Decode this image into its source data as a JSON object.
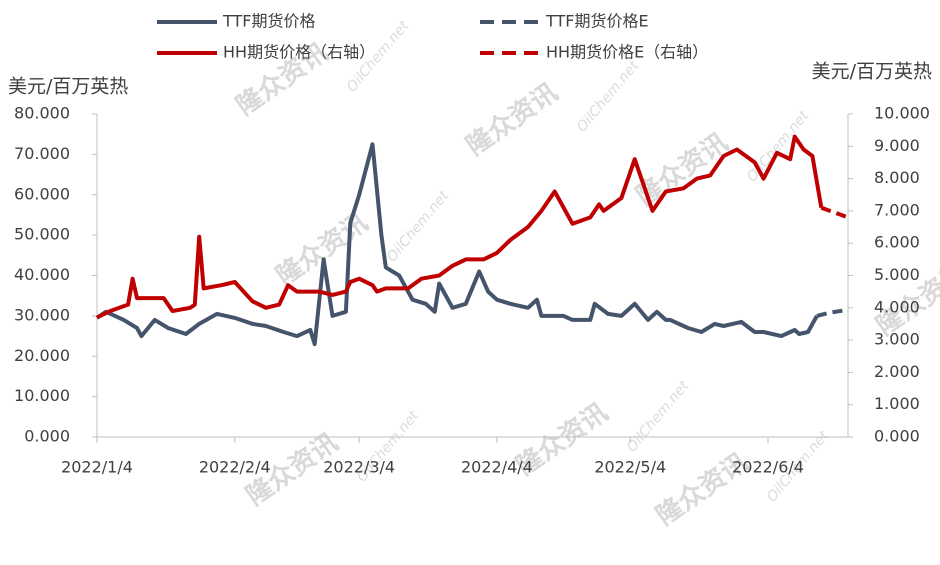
{
  "chart_data": {
    "type": "line",
    "y_label": "美元/百万英热",
    "y2_label": "美元/百万英热",
    "watermark": {
      "text": "隆众资讯",
      "site": "OilChem.net"
    },
    "xlim": [
      "2022/1/4",
      "2022/6/22"
    ],
    "xticks": [
      "2022/1/4",
      "2022/2/4",
      "2022/3/4",
      "2022/4/4",
      "2022/5/4",
      "2022/6/4"
    ],
    "ylim": [
      0,
      80
    ],
    "yticks": [
      {
        "value": 0,
        "label": "0.000"
      },
      {
        "value": 10,
        "label": "10.000"
      },
      {
        "value": 20,
        "label": "20.000"
      },
      {
        "value": 30,
        "label": "30.000"
      },
      {
        "value": 40,
        "label": "40.000"
      },
      {
        "value": 50,
        "label": "50.000"
      },
      {
        "value": 60,
        "label": "60.000"
      },
      {
        "value": 70,
        "label": "70.000"
      },
      {
        "value": 80,
        "label": "80.000"
      }
    ],
    "y2lim": [
      0,
      10
    ],
    "y2ticks": [
      {
        "value": 0,
        "label": "0.000"
      },
      {
        "value": 1,
        "label": "1.000"
      },
      {
        "value": 2,
        "label": "2.000"
      },
      {
        "value": 3,
        "label": "3.000"
      },
      {
        "value": 4,
        "label": "4.000"
      },
      {
        "value": 5,
        "label": "5.000"
      },
      {
        "value": 6,
        "label": "6.000"
      },
      {
        "value": 7,
        "label": "7.000"
      },
      {
        "value": 8,
        "label": "8.000"
      },
      {
        "value": 9,
        "label": "9.000"
      },
      {
        "value": 10,
        "label": "10.000"
      }
    ],
    "series": [
      {
        "name": "TTF期货价格",
        "color": "#44546a",
        "dash": false,
        "x": [
          "2022/1/4",
          "2022/1/6",
          "2022/1/10",
          "2022/1/13",
          "2022/1/14",
          "2022/1/17",
          "2022/1/20",
          "2022/1/24",
          "2022/1/27",
          "2022/1/31",
          "2022/2/4",
          "2022/2/8",
          "2022/2/11",
          "2022/2/15",
          "2022/2/18",
          "2022/2/21",
          "2022/2/22",
          "2022/2/24",
          "2022/2/26",
          "2022/3/1",
          "2022/3/2",
          "2022/3/4",
          "2022/3/7",
          "2022/3/9",
          "2022/3/10",
          "2022/3/13",
          "2022/3/16",
          "2022/3/19",
          "2022/3/21",
          "2022/3/22",
          "2022/3/25",
          "2022/3/28",
          "2022/3/31",
          "2022/4/2",
          "2022/4/4",
          "2022/4/7",
          "2022/4/11",
          "2022/4/13",
          "2022/4/14",
          "2022/4/19",
          "2022/4/21",
          "2022/4/25",
          "2022/4/26",
          "2022/4/29",
          "2022/5/2",
          "2022/5/5",
          "2022/5/8",
          "2022/5/10",
          "2022/5/12",
          "2022/5/13",
          "2022/5/17",
          "2022/5/20",
          "2022/5/23",
          "2022/5/25",
          "2022/5/29",
          "2022/6/1",
          "2022/6/3",
          "2022/6/7",
          "2022/6/10",
          "2022/6/11",
          "2022/6/13",
          "2022/6/15"
        ],
        "values": [
          29.5,
          31,
          29,
          27,
          25,
          29,
          27,
          25.5,
          28,
          30.5,
          29.5,
          28,
          27.5,
          26,
          25,
          26.5,
          23,
          44,
          30,
          31,
          53,
          60,
          72.5,
          50,
          42,
          40,
          34,
          33,
          31,
          38,
          32,
          33,
          41,
          36,
          34,
          33,
          32,
          34,
          30,
          30,
          29,
          29,
          33,
          30.5,
          30,
          33,
          29,
          31,
          29,
          29,
          27,
          26,
          28,
          27.5,
          28.5,
          26,
          26,
          25,
          26.5,
          25.5,
          26,
          30
        ]
      },
      {
        "name": "TTF期货价格E",
        "color": "#44546a",
        "dash": true,
        "x": [
          "2022/6/15",
          "2022/6/18",
          "2022/6/22"
        ],
        "values": [
          30,
          30.8,
          31.5
        ]
      },
      {
        "name": "HH期货价格（右轴）",
        "color": "#c00000",
        "dash": false,
        "axis": "y2",
        "x": [
          "2022/1/4",
          "2022/1/7",
          "2022/1/11",
          "2022/1/12",
          "2022/1/13",
          "2022/1/19",
          "2022/1/21",
          "2022/1/25",
          "2022/1/26",
          "2022/1/27",
          "2022/1/28",
          "2022/2/1",
          "2022/2/4",
          "2022/2/8",
          "2022/2/11",
          "2022/2/14",
          "2022/2/16",
          "2022/2/18",
          "2022/2/23",
          "2022/2/26",
          "2022/3/1",
          "2022/3/2",
          "2022/3/4",
          "2022/3/7",
          "2022/3/8",
          "2022/3/10",
          "2022/3/15",
          "2022/3/18",
          "2022/3/22",
          "2022/3/25",
          "2022/3/28",
          "2022/4/1",
          "2022/4/4",
          "2022/4/7",
          "2022/4/11",
          "2022/4/14",
          "2022/4/17",
          "2022/4/21",
          "2022/4/25",
          "2022/4/27",
          "2022/4/28",
          "2022/5/2",
          "2022/5/5",
          "2022/5/9",
          "2022/5/12",
          "2022/5/16",
          "2022/5/19",
          "2022/5/22",
          "2022/5/25",
          "2022/5/28",
          "2022/6/1",
          "2022/6/3",
          "2022/6/6",
          "2022/6/9",
          "2022/6/10",
          "2022/6/12",
          "2022/6/14",
          "2022/6/16"
        ],
        "values": [
          3.7,
          3.9,
          4.1,
          4.9,
          4.3,
          4.3,
          3.9,
          4.0,
          4.1,
          6.2,
          4.6,
          4.7,
          4.8,
          4.2,
          4.0,
          4.1,
          4.7,
          4.5,
          4.5,
          4.4,
          4.5,
          4.8,
          4.9,
          4.7,
          4.5,
          4.6,
          4.6,
          4.9,
          5.0,
          5.3,
          5.5,
          5.5,
          5.7,
          6.1,
          6.5,
          7.0,
          7.6,
          6.6,
          6.8,
          7.2,
          7.0,
          7.4,
          8.6,
          7.0,
          7.6,
          7.7,
          8.0,
          8.1,
          8.7,
          8.9,
          8.5,
          8.0,
          8.8,
          8.6,
          9.3,
          8.9,
          8.7,
          7.1
        ]
      },
      {
        "name": "HH期货价格E（右轴）",
        "color": "#c00000",
        "dash": true,
        "axis": "y2",
        "x": [
          "2022/6/16",
          "2022/6/19",
          "2022/6/22"
        ],
        "values": [
          7.1,
          6.95,
          6.8
        ]
      }
    ]
  }
}
